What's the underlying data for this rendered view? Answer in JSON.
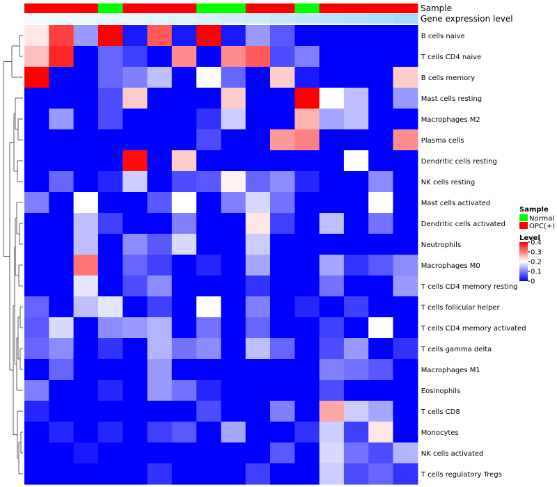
{
  "chart_data": {
    "type": "heatmap",
    "annotation_labels": {
      "sample": "Sample",
      "gene": "Gene expression level"
    },
    "row_labels": [
      "B cells naive",
      "T cells CD4 naive",
      "B cells memory",
      "Mast cells resting",
      "Macrophages M2",
      "Plasma cells",
      "Dendritic cells resting",
      "NK cells resting",
      "Mast cells activated",
      "Dendritic cells activated",
      "Neutrophils",
      "Macrophages M0",
      "T cells CD4 memory resting",
      "T cells follicular helper",
      "T cells CD4 memory activated",
      "T cells gamma delta",
      "Macrophages M1",
      "Eosinophils",
      "T cells CD8",
      "Monocytes",
      "NK cells activated",
      "T cells regulatory  Tregs"
    ],
    "sample_groups": [
      "OPC(+)",
      "OPC(+)",
      "OPC(+)",
      "Normal",
      "OPC(+)",
      "OPC(+)",
      "OPC(+)",
      "Normal",
      "Normal",
      "OPC(+)",
      "OPC(+)",
      "Normal",
      "OPC(+)",
      "OPC(+)",
      "OPC(+)",
      "OPC(+)"
    ],
    "gene_expression": [
      0.02,
      0.04,
      0.06,
      0.08,
      0.1,
      0.12,
      0.14,
      0.17,
      0.2,
      0.24,
      0.28,
      0.32,
      0.36,
      0.4,
      0.44,
      0.5
    ],
    "values": [
      [
        0.22,
        0.35,
        0.12,
        0.4,
        0.02,
        0.33,
        0.02,
        0.4,
        0.02,
        0.12,
        0.07,
        0,
        0,
        0,
        0,
        0
      ],
      [
        0.25,
        0.37,
        0,
        0.08,
        0.05,
        0,
        0.29,
        0,
        0.29,
        0.33,
        0.06,
        0.1,
        0,
        0,
        0,
        0
      ],
      [
        0.4,
        0,
        0,
        0.08,
        0.1,
        0.15,
        0,
        0.2,
        0.08,
        0,
        0.24,
        0.02,
        0,
        0,
        0,
        0.24
      ],
      [
        0,
        0,
        0,
        0.06,
        0.24,
        0,
        0,
        0,
        0.24,
        0,
        0,
        0.4,
        0.2,
        0.15,
        0,
        0.12
      ],
      [
        0,
        0.12,
        0,
        0.06,
        0,
        0,
        0,
        0.04,
        0.16,
        0,
        0,
        0.26,
        0.13,
        0.15,
        0,
        0
      ],
      [
        0,
        0,
        0,
        0,
        0,
        0,
        0,
        0.06,
        0,
        0,
        0.28,
        0.3,
        0,
        0,
        0,
        0.29
      ],
      [
        0,
        0,
        0,
        0,
        0.39,
        0,
        0.24,
        0,
        0,
        0,
        0,
        0,
        0,
        0.2,
        0,
        0
      ],
      [
        0,
        0.08,
        0,
        0.03,
        0.16,
        0,
        0.06,
        0.07,
        0.21,
        0.08,
        0.11,
        0.03,
        0,
        0,
        0.11,
        0
      ],
      [
        0.1,
        0,
        0.2,
        0,
        0,
        0.07,
        0.2,
        0,
        0.1,
        0.17,
        0.09,
        0,
        0,
        0,
        0.2,
        0
      ],
      [
        0,
        0,
        0.15,
        0.05,
        0,
        0,
        0.1,
        0,
        0,
        0.22,
        0.05,
        0,
        0.15,
        0,
        0.09,
        0
      ],
      [
        0,
        0,
        0.15,
        0,
        0.11,
        0.07,
        0.17,
        0,
        0,
        0.16,
        0,
        0,
        0,
        0,
        0,
        0
      ],
      [
        0,
        0,
        0.31,
        0,
        0.08,
        0.05,
        0,
        0.03,
        0,
        0.13,
        0,
        0,
        0.13,
        0.04,
        0.07,
        0.11
      ],
      [
        0,
        0,
        0.18,
        0,
        0.06,
        0.11,
        0,
        0,
        0,
        0.04,
        0,
        0,
        0.09,
        0,
        0,
        0.12
      ],
      [
        0.08,
        0,
        0.15,
        0.18,
        0,
        0.05,
        0,
        0.2,
        0,
        0.1,
        0,
        0.03,
        0,
        0.05,
        0,
        0
      ],
      [
        0.07,
        0.17,
        0,
        0.11,
        0.12,
        0.14,
        0,
        0.09,
        0,
        0.08,
        0,
        0,
        0.05,
        0,
        0.2,
        0
      ],
      [
        0.08,
        0.11,
        0,
        0.04,
        0,
        0.14,
        0.09,
        0.11,
        0,
        0.15,
        0.08,
        0,
        0.06,
        0.12,
        0,
        0.04
      ],
      [
        0,
        0.08,
        0,
        0,
        0,
        0.12,
        0,
        0,
        0,
        0,
        0,
        0,
        0.1,
        0.09,
        0.07,
        0
      ],
      [
        0.1,
        0,
        0,
        0.03,
        0,
        0.12,
        0.09,
        0.03,
        0,
        0,
        0,
        0,
        0.06,
        0,
        0,
        0
      ],
      [
        0.03,
        0,
        0,
        0,
        0,
        0,
        0,
        0.06,
        0,
        0,
        0.1,
        0,
        0.27,
        0.16,
        0.13,
        0
      ],
      [
        0,
        0.03,
        0,
        0.03,
        0,
        0.05,
        0.07,
        0,
        0.13,
        0,
        0,
        0.04,
        0.16,
        0.05,
        0.22,
        0
      ],
      [
        0,
        0,
        0.02,
        0,
        0,
        0,
        0,
        0,
        0,
        0,
        0.07,
        0,
        0.17,
        0.09,
        0.06,
        0.14
      ],
      [
        0,
        0,
        0,
        0,
        0,
        0.04,
        0,
        0,
        0,
        0.05,
        0,
        0,
        0.16,
        0.06,
        0.08,
        0.04
      ]
    ],
    "legend": {
      "sample_title": "Sample",
      "sample_entries": [
        {
          "name": "Normal",
          "color": "#00ff00"
        },
        {
          "name": "OPC(+)",
          "color": "#ff0000"
        }
      ],
      "level_title": "Level",
      "level_ticks": [
        "0",
        "0.1",
        "0.2",
        "0.3",
        "0.4"
      ],
      "level_range": [
        0,
        0.4
      ]
    },
    "colors": {
      "low": "#0000ff",
      "mid": "#ffffff",
      "high": "#ff0000"
    }
  }
}
